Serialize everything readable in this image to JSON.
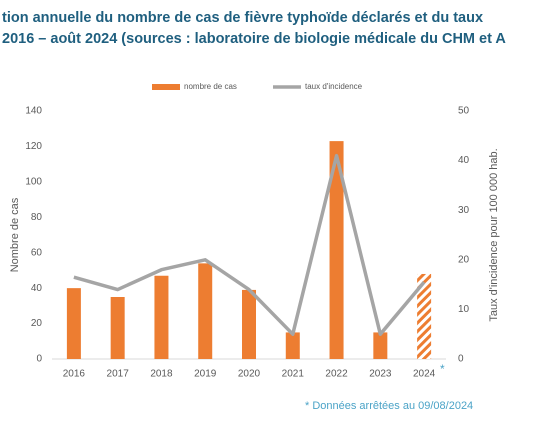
{
  "chart_data": {
    "type": "bar_line",
    "title_lines": [
      "tion annuelle du nombre de cas de fièvre typhoïde déclarés et du taux",
      "2016 – août 2024 (sources : laboratoire de biologie médicale du CHM et A"
    ],
    "categories": [
      "2016",
      "2017",
      "2018",
      "2019",
      "2020",
      "2021",
      "2022",
      "2023",
      "2024"
    ],
    "category_note": "*",
    "series": [
      {
        "name": "nombre de cas",
        "color": "#ed7d31",
        "values": [
          40,
          35,
          47,
          54,
          39,
          15,
          123,
          15,
          48
        ],
        "hatched": [
          false,
          false,
          false,
          false,
          false,
          false,
          false,
          false,
          true
        ]
      },
      {
        "name": "taux d'incidence",
        "color": "#a5a5a5",
        "axis": "y2",
        "values": [
          16.5,
          14,
          18,
          20,
          14,
          5,
          41,
          5,
          15.5
        ]
      }
    ],
    "ylabel": "Nombre de cas",
    "y2label": "Taux d'incidence pour 100 000 hab.",
    "ylim": [
      0,
      140
    ],
    "yticks": [
      0,
      20,
      40,
      60,
      80,
      100,
      120,
      140
    ],
    "y2lim": [
      0,
      50
    ],
    "y2ticks": [
      0,
      10,
      20,
      30,
      40,
      50
    ],
    "footnote": "* Données arrêtées au 09/08/2024"
  }
}
